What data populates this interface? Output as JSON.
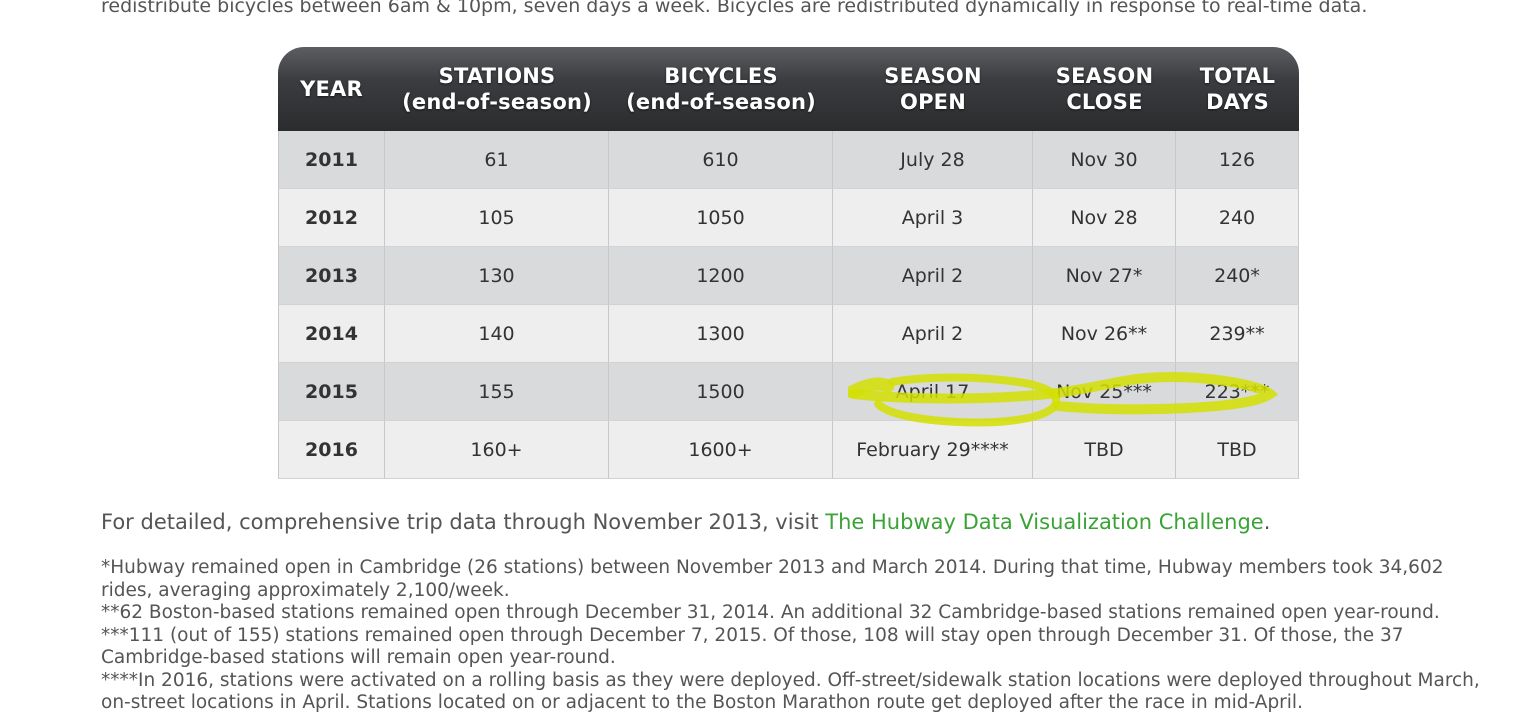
{
  "intro": {
    "text": "redistribute bicycles between 6am & 10pm, seven days a week. Bicycles are redistributed dynamically in response to real-time data."
  },
  "table": {
    "headers": [
      {
        "line1": "YEAR",
        "line2": ""
      },
      {
        "line1": "STATIONS",
        "line2": "(end-of-season)"
      },
      {
        "line1": "BICYCLES",
        "line2": "(end-of-season)"
      },
      {
        "line1": "SEASON",
        "line2": "OPEN"
      },
      {
        "line1": "SEASON",
        "line2": "CLOSE"
      },
      {
        "line1": "TOTAL",
        "line2": "DAYS"
      }
    ],
    "rows": [
      [
        "2011",
        "61",
        "610",
        "July 28",
        "Nov 30",
        "126"
      ],
      [
        "2012",
        "105",
        "1050",
        "April 3",
        "Nov 28",
        "240"
      ],
      [
        "2013",
        "130",
        "1200",
        "April 2",
        "Nov 27*",
        "240*"
      ],
      [
        "2014",
        "140",
        "1300",
        "April 2",
        "Nov 26**",
        "239**"
      ],
      [
        "2015",
        "155",
        "1500",
        "April 17",
        "Nov 25***",
        "223***"
      ],
      [
        "2016",
        "160+",
        "1600+",
        "February 29****",
        "TBD",
        "TBD"
      ]
    ]
  },
  "detail": {
    "prefix": "For detailed, comprehensive trip data through November 2013, visit ",
    "link": "The Hubway Data Visualization Challenge",
    "suffix": "."
  },
  "footnotes": [
    "*Hubway remained open in Cambridge (26 stations) between November 2013 and March 2014. During that time, Hubway members took 34,602 rides, averaging approximately 2,100/week.",
    "**62 Boston-based stations remained open through December 31, 2014. An additional 32 Cambridge-based stations remained open year-round.",
    "***111 (out of 155) stations remained open through December 7, 2015. Of those, 108 will stay open through December 31. Of those, the 37 Cambridge-based stations will remain open year-round.",
    "****In 2016, stations were activated on a rolling basis as they were deployed. Off-street/sidewalk station locations were deployed throughout March, on-street locations in April. Stations located on or adjacent to the Boston Marathon route get deployed after the race in mid-April."
  ],
  "colors": {
    "link": "#3aa336",
    "highlight_marker": "#d4df00",
    "header_dark": "#2b2c2e",
    "row_odd": "#d9dadb",
    "row_even": "#eeeeef"
  }
}
